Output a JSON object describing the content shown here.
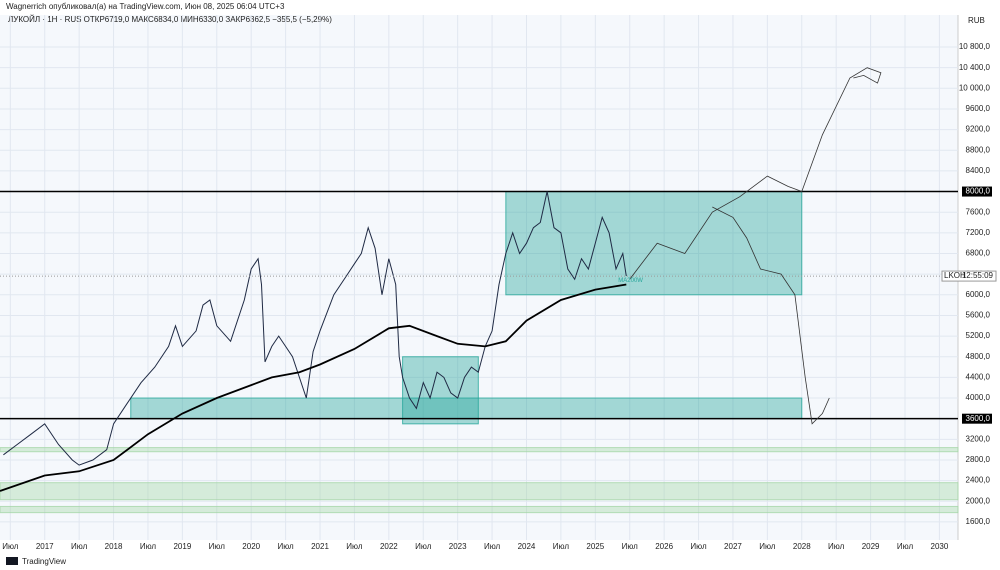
{
  "chart_data": {
    "type": "line",
    "header": "Wagnerrich опубликовал(а) на TradingView.com, Июн 08, 2025 06:04 UTC+3",
    "legend": "ЛУКОЙЛ · 1Н · RUS  ОТКР6719,0  МАКС6834,0  МИН6330,0  ЗАКР6362,5  −355,5 (−5,29%)",
    "currency": "RUB",
    "footer": "TradingView",
    "ma_label": "MA200W",
    "ticker": "LKOH",
    "countdown": "12:55:09",
    "xlim": [
      2016.35,
      2030.27
    ],
    "ylim": [
      1250,
      11420
    ],
    "xticks": [
      {
        "value": 2016.5,
        "label": "Июл"
      },
      2017,
      {
        "value": 2017.5,
        "label": "Июл"
      },
      2018,
      {
        "value": 2018.5,
        "label": "Июл"
      },
      2019,
      {
        "value": 2019.5,
        "label": "Июл"
      },
      2020,
      {
        "value": 2020.5,
        "label": "Июл"
      },
      2021,
      {
        "value": 2021.5,
        "label": "Июл"
      },
      2022,
      {
        "value": 2022.5,
        "label": "Июл"
      },
      2023,
      {
        "value": 2023.5,
        "label": "Июл"
      },
      2024,
      {
        "value": 2024.5,
        "label": "Июл"
      },
      2025,
      {
        "value": 2025.5,
        "label": "Июл"
      },
      2026,
      {
        "value": 2026.5,
        "label": "Июл"
      },
      2027,
      {
        "value": 2027.5,
        "label": "Июл"
      },
      2028,
      {
        "value": 2028.5,
        "label": "Июл"
      },
      2029,
      {
        "value": 2029.5,
        "label": "Июл"
      },
      2030
    ],
    "yticks": [
      {
        "value": 1600,
        "label": "1600,0"
      },
      {
        "value": 2000,
        "label": "2000,0"
      },
      {
        "value": 2400,
        "label": "2400,0"
      },
      {
        "value": 2800,
        "label": "2800,0"
      },
      {
        "value": 3200,
        "label": "3200,0"
      },
      {
        "value": 3600,
        "label": "3600,0"
      },
      {
        "value": 4000,
        "label": "4000,0"
      },
      {
        "value": 4400,
        "label": "4400,0"
      },
      {
        "value": 4800,
        "label": "4800,0"
      },
      {
        "value": 5200,
        "label": "5200,0"
      },
      {
        "value": 5600,
        "label": "5600,0"
      },
      {
        "value": 6000,
        "label": "6000,0"
      },
      {
        "value": 6400,
        "label": "6400,0"
      },
      {
        "value": 6800,
        "label": "6800,0"
      },
      {
        "value": 7200,
        "label": "7200,0"
      },
      {
        "value": 7600,
        "label": "7600,0"
      },
      {
        "value": 8000,
        "label": "8000,0"
      },
      {
        "value": 8400,
        "label": "8400,0"
      },
      {
        "value": 8800,
        "label": "8800,0"
      },
      {
        "value": 9200,
        "label": "9200,0"
      },
      {
        "value": 9600,
        "label": "9600,0"
      },
      {
        "value": 10000,
        "label": "10 000,0"
      },
      {
        "value": 10400,
        "label": "10 400,0"
      },
      {
        "value": 10800,
        "label": "10 800,0"
      }
    ],
    "grid": true,
    "levels": [
      8000,
      3600
    ],
    "zones": [
      {
        "t": [
          2018.25,
          2028
        ],
        "v": [
          3600,
          4000
        ],
        "color": "#26a69a"
      },
      {
        "t": [
          2022.2,
          2023.3
        ],
        "v": [
          3500,
          4800
        ],
        "color": "#26a69a"
      },
      {
        "t": [
          2023.7,
          2028
        ],
        "v": [
          6000,
          8000
        ],
        "color": "#26a69a"
      },
      {
        "t": [
          2016.35,
          2030.27
        ],
        "v": [
          2960,
          3040
        ],
        "color": "#a5d6a7"
      },
      {
        "t": [
          2016.35,
          2030.27
        ],
        "v": [
          2030,
          2360
        ],
        "color": "#a5d6a7"
      },
      {
        "t": [
          2016.35,
          2030.27
        ],
        "v": [
          1780,
          1900
        ],
        "color": "#a5d6a7"
      }
    ],
    "series": [
      {
        "name": "ЛУКОЙЛ",
        "color": "#1f2a44",
        "x": [
          2016.4,
          2016.6,
          2016.8,
          2017.0,
          2017.2,
          2017.4,
          2017.5,
          2017.7,
          2017.9,
          2018.0,
          2018.2,
          2018.4,
          2018.6,
          2018.8,
          2018.9,
          2019.0,
          2019.2,
          2019.3,
          2019.4,
          2019.5,
          2019.7,
          2019.9,
          2020.0,
          2020.1,
          2020.15,
          2020.2,
          2020.3,
          2020.4,
          2020.5,
          2020.6,
          2020.7,
          2020.8,
          2020.9,
          2021.0,
          2021.2,
          2021.4,
          2021.5,
          2021.6,
          2021.7,
          2021.8,
          2021.9,
          2022.0,
          2022.1,
          2022.15,
          2022.2,
          2022.3,
          2022.4,
          2022.5,
          2022.6,
          2022.7,
          2022.8,
          2022.9,
          2023.0,
          2023.1,
          2023.2,
          2023.3,
          2023.4,
          2023.5,
          2023.6,
          2023.7,
          2023.8,
          2023.9,
          2024.0,
          2024.1,
          2024.2,
          2024.3,
          2024.4,
          2024.5,
          2024.6,
          2024.7,
          2024.8,
          2024.9,
          2025.0,
          2025.1,
          2025.2,
          2025.3,
          2025.4,
          2025.45
        ],
        "values": [
          2900,
          3100,
          3300,
          3500,
          3100,
          2800,
          2700,
          2800,
          3000,
          3500,
          3900,
          4300,
          4600,
          5000,
          5400,
          5000,
          5300,
          5800,
          5900,
          5400,
          5100,
          5900,
          6500,
          6700,
          6200,
          4700,
          5000,
          5200,
          5000,
          4800,
          4400,
          4000,
          4900,
          5300,
          6000,
          6400,
          6600,
          6800,
          7300,
          6900,
          6000,
          6700,
          6200,
          4800,
          4400,
          4000,
          3800,
          4300,
          4000,
          4500,
          4400,
          4100,
          4000,
          4400,
          4600,
          4500,
          5000,
          5300,
          6200,
          6800,
          7200,
          6800,
          7000,
          7300,
          7400,
          8000,
          7300,
          7200,
          6500,
          6300,
          6700,
          6500,
          7000,
          7500,
          7200,
          6500,
          6800,
          6362.5
        ]
      },
      {
        "name": "MA200W",
        "color": "#000000",
        "x": [
          2016.35,
          2017,
          2017.5,
          2018,
          2018.5,
          2019,
          2019.5,
          2020,
          2020.3,
          2020.7,
          2021,
          2021.5,
          2022,
          2022.3,
          2022.7,
          2023,
          2023.4,
          2023.7,
          2024,
          2024.5,
          2025,
          2025.45
        ],
        "values": [
          2200,
          2500,
          2580,
          2800,
          3300,
          3700,
          4000,
          4250,
          4400,
          4500,
          4650,
          4950,
          5350,
          5400,
          5200,
          5050,
          5000,
          5100,
          5500,
          5900,
          6100,
          6200
        ]
      }
    ],
    "projections": [
      {
        "x": [
          2025.5,
          2025.9,
          2026.3,
          2026.7,
          2027.1,
          2027.5,
          2027.8,
          2028.0,
          2028.3,
          2028.7,
          2028.95,
          2029.15,
          2029.1,
          2028.9,
          2028.75
        ],
        "values": [
          6300,
          7000,
          6800,
          7600,
          7900,
          8300,
          8100,
          8000,
          9100,
          10200,
          10400,
          10300,
          10100,
          10250,
          10200
        ]
      },
      {
        "x": [
          2026.7,
          2027.0,
          2027.2,
          2027.4,
          2027.7,
          2027.9,
          2028.05,
          2028.15,
          2028.3,
          2028.4
        ],
        "values": [
          7700,
          7500,
          7100,
          6500,
          6400,
          6000,
          4400,
          3500,
          3700,
          4000
        ]
      }
    ]
  }
}
